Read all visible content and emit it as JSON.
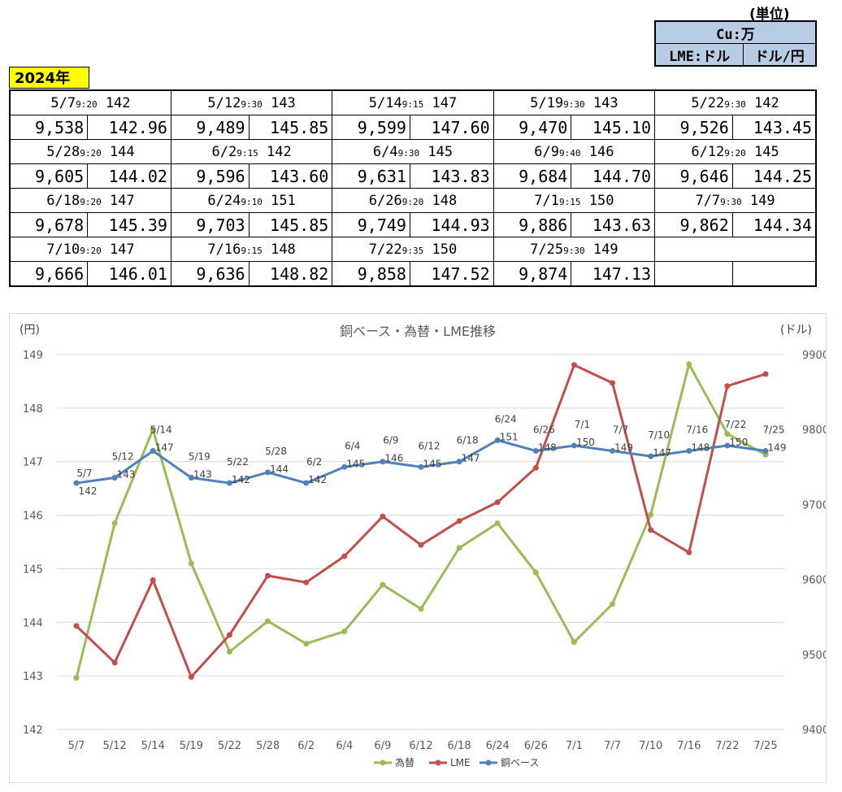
{
  "unit": {
    "title": "(単位)",
    "cu_label": "Cu:万",
    "lme_label": "LME:ドル",
    "fx_label": "ドル/円"
  },
  "year": "2024年",
  "records": [
    {
      "date": "5/7",
      "time": "9:20",
      "base": "142",
      "lme": "9,538",
      "fx": "142.96"
    },
    {
      "date": "5/12",
      "time": "9:30",
      "base": "143",
      "lme": "9,489",
      "fx": "145.85"
    },
    {
      "date": "5/14",
      "time": "9:15",
      "base": "147",
      "lme": "9,599",
      "fx": "147.60"
    },
    {
      "date": "5/19",
      "time": "9:30",
      "base": "143",
      "lme": "9,470",
      "fx": "145.10"
    },
    {
      "date": "5/22",
      "time": "9:30",
      "base": "142",
      "lme": "9,526",
      "fx": "143.45"
    },
    {
      "date": "5/28",
      "time": "9:20",
      "base": "144",
      "lme": "9,605",
      "fx": "144.02"
    },
    {
      "date": "6/2",
      "time": "9:15",
      "base": "142",
      "lme": "9,596",
      "fx": "143.60"
    },
    {
      "date": "6/4",
      "time": "9:30",
      "base": "145",
      "lme": "9,631",
      "fx": "143.83"
    },
    {
      "date": "6/9",
      "time": "9:40",
      "base": "146",
      "lme": "9,684",
      "fx": "144.70"
    },
    {
      "date": "6/12",
      "time": "9:20",
      "base": "145",
      "lme": "9,646",
      "fx": "144.25"
    },
    {
      "date": "6/18",
      "time": "9:20",
      "base": "147",
      "lme": "9,678",
      "fx": "145.39"
    },
    {
      "date": "6/24",
      "time": "9:10",
      "base": "151",
      "lme": "9,703",
      "fx": "145.85"
    },
    {
      "date": "6/26",
      "time": "9:20",
      "base": "148",
      "lme": "9,749",
      "fx": "144.93"
    },
    {
      "date": "7/1",
      "time": "9:15",
      "base": "150",
      "lme": "9,886",
      "fx": "143.63"
    },
    {
      "date": "7/7",
      "time": "9:30",
      "base": "149",
      "lme": "9,862",
      "fx": "144.34"
    },
    {
      "date": "7/10",
      "time": "9:20",
      "base": "147",
      "lme": "9,666",
      "fx": "146.01"
    },
    {
      "date": "7/16",
      "time": "9:15",
      "base": "148",
      "lme": "9,636",
      "fx": "148.82"
    },
    {
      "date": "7/22",
      "time": "9:35",
      "base": "150",
      "lme": "9,858",
      "fx": "147.52"
    },
    {
      "date": "7/25",
      "time": "9:30",
      "base": "149",
      "lme": "9,874",
      "fx": "147.13"
    }
  ],
  "chart_data": {
    "type": "line",
    "title": "銅ベース・為替・LME推移",
    "ylabel_left": "(円)",
    "ylabel_right": "(ドル)",
    "ylim_left": [
      142,
      149
    ],
    "ylim_right": [
      9400,
      9900
    ],
    "yticks_left": [
      "142",
      "143",
      "144",
      "145",
      "146",
      "147",
      "148",
      "149"
    ],
    "yticks_right": [
      "9400",
      "9500",
      "9600",
      "9700",
      "9800",
      "9900"
    ],
    "grid": true,
    "legend_position": "bottom",
    "categories": [
      "5/7",
      "5/12",
      "5/14",
      "5/19",
      "5/22",
      "5/28",
      "6/2",
      "6/4",
      "6/9",
      "6/12",
      "6/18",
      "6/24",
      "6/26",
      "7/1",
      "7/7",
      "7/10",
      "7/16",
      "7/22",
      "7/25"
    ],
    "series": [
      {
        "name": "為替",
        "axis": "left",
        "color": "#9bbb59",
        "values": [
          142.96,
          145.85,
          147.6,
          145.1,
          143.45,
          144.02,
          143.6,
          143.83,
          144.7,
          144.25,
          145.39,
          145.85,
          144.93,
          143.63,
          144.34,
          146.01,
          148.82,
          147.52,
          147.13
        ]
      },
      {
        "name": "LME",
        "axis": "right",
        "color": "#c0504d",
        "values": [
          9538,
          9489,
          9599,
          9470,
          9526,
          9605,
          9596,
          9631,
          9684,
          9646,
          9678,
          9703,
          9749,
          9886,
          9862,
          9666,
          9636,
          9858,
          9874
        ]
      },
      {
        "name": "銅ベース",
        "axis": "right",
        "color": "#4f81bd",
        "values": [
          142,
          143,
          147,
          143,
          142,
          144,
          142,
          145,
          146,
          145,
          147,
          151,
          148,
          150,
          149,
          147,
          148,
          150,
          149
        ]
      }
    ],
    "point_labels": [
      "5/7",
      "5/12",
      "5/14",
      "5/19",
      "5/22",
      "5/28",
      "6/2",
      "6/4",
      "6/9",
      "6/12",
      "6/18",
      "6/24",
      "6/26",
      "7/1",
      "7/7",
      "7/10",
      "7/16",
      "7/22",
      "7/25"
    ],
    "point_values": [
      "142",
      "143",
      "147",
      "143",
      "142",
      "144",
      "142",
      "145",
      "146",
      "145",
      "147",
      "151",
      "148",
      "150",
      "149",
      "147",
      "148",
      "150",
      "149"
    ]
  }
}
